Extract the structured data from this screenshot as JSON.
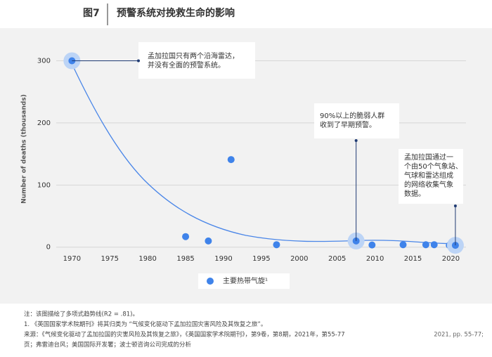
{
  "header": {
    "figure": "图7",
    "title": "预警系统对挽救生命的影响"
  },
  "chart_data": {
    "type": "scatter",
    "y_label": "Number of deaths (thousands)",
    "xlim": [
      1967,
      2022
    ],
    "ylim": [
      -15,
      330
    ],
    "xticks": [
      1970,
      1975,
      1980,
      1985,
      1990,
      1995,
      2000,
      2005,
      2010,
      2015,
      2020
    ],
    "yticks": [
      0,
      100,
      200,
      300
    ],
    "grid": true,
    "series": [
      {
        "name": "主要热带气旋¹",
        "color": "#3f83ea",
        "x": [
          1970,
          1985,
          1988,
          1991,
          1997,
          2007.5,
          2009.6,
          2013.7,
          2016.7,
          2017.8,
          2019.8,
          2020.6
        ],
        "values": [
          300,
          17,
          10,
          141,
          4,
          10,
          3.5,
          4,
          4,
          4,
          3,
          3
        ]
      }
    ],
    "annotations": [
      {
        "lines": [
          "孟加拉国只有两个沿海雷达，",
          "并没有全面的预警系统。"
        ]
      },
      {
        "lines": [
          "90%以上的脆弱人群",
          "收到了早期预警。"
        ]
      },
      {
        "lines": [
          "孟加拉国通过一",
          "个由50个气象站、",
          "气球和雷达组成",
          "的网络收集气象",
          "数据。"
        ]
      }
    ]
  },
  "footer": {
    "lines": [
      "注：该图描绘了多项式趋势线(R2 = .81)。",
      "1. 《英国国家学术院期刊》将其归类为 “气候变化驱动下孟加拉国灾害风险及其恢复之旅”。",
      "来源：《气候变化驱动了孟加拉国的灾害风险及其恢复之旅》，《英国国家学术院期刊》，第9卷，第8期，2021年，第55-77",
      "页；弗雷迪台风；美国国际开发署；波士顿咨询公司完成的分析"
    ],
    "right": "2021, pp. 55-77;"
  }
}
